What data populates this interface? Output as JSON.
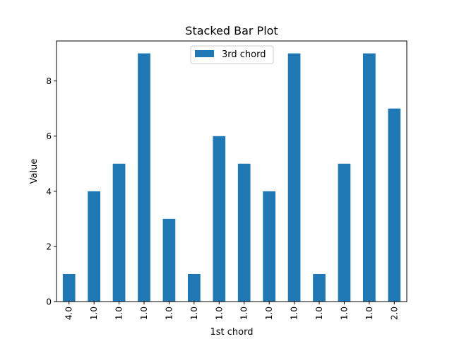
{
  "chart_data": {
    "type": "bar",
    "stacked": true,
    "title": "Stacked Bar Plot",
    "xlabel": "1st chord",
    "ylabel": "Value",
    "categories": [
      "4.0",
      "1.0",
      "1.0",
      "1.0",
      "1.0",
      "1.0",
      "1.0",
      "1.0",
      "1.0",
      "1.0",
      "1.0",
      "1.0",
      "1.0",
      "2.0"
    ],
    "series": [
      {
        "name": "3rd chord",
        "values": [
          1,
          4,
          5,
          9,
          3,
          1,
          6,
          5,
          4,
          9,
          1,
          5,
          9,
          7
        ]
      }
    ],
    "ylim": [
      0,
      9.45
    ],
    "yticks": [
      0,
      2,
      4,
      6,
      8
    ],
    "grid": false,
    "legend_position": "upper center",
    "colors": {
      "series": "#1f77b4",
      "axis": "#000000",
      "background": "#ffffff"
    }
  }
}
